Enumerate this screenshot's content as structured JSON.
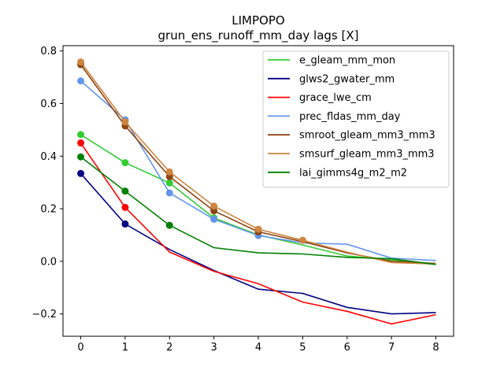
{
  "chart_data": {
    "type": "line",
    "title": "LIMPOPO",
    "subtitle": "grun_ens_runoff_mm_day lags [X]",
    "xlabel": "",
    "ylabel": "",
    "x": [
      0,
      1,
      2,
      3,
      4,
      5,
      6,
      7,
      8
    ],
    "xlim": [
      -0.4,
      8.4
    ],
    "ylim": [
      -0.285,
      0.82
    ],
    "xticks": [
      "0",
      "1",
      "2",
      "3",
      "4",
      "5",
      "6",
      "7",
      "8"
    ],
    "yticks": [
      {
        "value": -0.2,
        "label": "−0.2"
      },
      {
        "value": 0.0,
        "label": "0.0"
      },
      {
        "value": 0.2,
        "label": "0.2"
      },
      {
        "value": 0.4,
        "label": "0.4"
      },
      {
        "value": 0.6,
        "label": "0.6"
      },
      {
        "value": 0.8,
        "label": "0.8"
      }
    ],
    "grid": false,
    "legend_position": "top-right",
    "series": [
      {
        "name": "e_gleam_mm_mon",
        "color": "#32cd32",
        "values": [
          0.482,
          0.375,
          0.298,
          0.165,
          0.1,
          0.062,
          0.02,
          0.005,
          -0.012
        ],
        "markers": [
          0,
          1,
          2,
          3
        ]
      },
      {
        "name": "glws2_gwater_mm",
        "color": "#000080",
        "values": [
          0.334,
          0.142,
          0.045,
          -0.035,
          -0.106,
          -0.122,
          -0.175,
          -0.2,
          -0.195
        ],
        "markers": [
          0,
          1
        ]
      },
      {
        "name": "grace_lwe_cm",
        "color": "#ff0000",
        "values": [
          0.45,
          0.205,
          0.035,
          -0.038,
          -0.085,
          -0.155,
          -0.19,
          -0.238,
          -0.203
        ],
        "markers": [
          0,
          1
        ]
      },
      {
        "name": "prec_fldas_mm_day",
        "color": "#6495ed",
        "values": [
          0.686,
          0.538,
          0.26,
          0.16,
          0.098,
          0.07,
          0.065,
          0.012,
          0.003
        ],
        "markers": [
          0,
          1,
          2,
          3,
          4
        ]
      },
      {
        "name": "smroot_gleam_mm3_mm3",
        "color": "#8b4513",
        "values": [
          0.748,
          0.515,
          0.322,
          0.192,
          0.112,
          0.075,
          0.032,
          0.0,
          -0.008
        ],
        "markers": [
          0,
          1,
          2,
          3,
          4
        ]
      },
      {
        "name": "smsurf_gleam_mm3_mm3",
        "color": "#cd853f",
        "values": [
          0.758,
          0.53,
          0.34,
          0.21,
          0.122,
          0.08,
          0.035,
          -0.005,
          -0.01
        ],
        "markers": [
          0,
          1,
          2,
          3,
          4,
          5
        ]
      },
      {
        "name": "lai_gimms4g_m2_m2",
        "color": "#008000",
        "values": [
          0.397,
          0.267,
          0.137,
          0.052,
          0.032,
          0.028,
          0.015,
          0.01,
          -0.012
        ],
        "markers": [
          0,
          1,
          2
        ]
      }
    ]
  }
}
